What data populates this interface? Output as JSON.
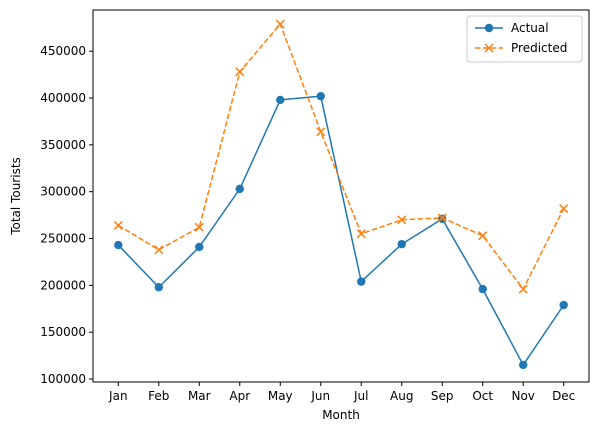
{
  "chart_data": {
    "type": "line",
    "title": "",
    "xlabel": "Month",
    "ylabel": "Total Tourists",
    "categories": [
      "Jan",
      "Feb",
      "Mar",
      "Apr",
      "May",
      "Jun",
      "Jul",
      "Aug",
      "Sep",
      "Oct",
      "Nov",
      "Dec"
    ],
    "series": [
      {
        "name": "Actual",
        "color": "#1f77b4",
        "marker": "circle",
        "line_style": "solid",
        "values": [
          243000,
          198000,
          241000,
          303000,
          398000,
          402000,
          204000,
          244000,
          271000,
          196000,
          115000,
          179000
        ]
      },
      {
        "name": "Predicted",
        "color": "#ff7f0e",
        "marker": "x",
        "line_style": "dashed",
        "values": [
          264000,
          238000,
          262000,
          428000,
          479000,
          364000,
          255000,
          270000,
          272000,
          253000,
          196000,
          282000
        ]
      }
    ],
    "yticks": [
      100000,
      150000,
      200000,
      250000,
      300000,
      350000,
      400000,
      450000
    ],
    "ylim": [
      96800,
      494000
    ],
    "grid": false,
    "legend_position": "top-right"
  }
}
